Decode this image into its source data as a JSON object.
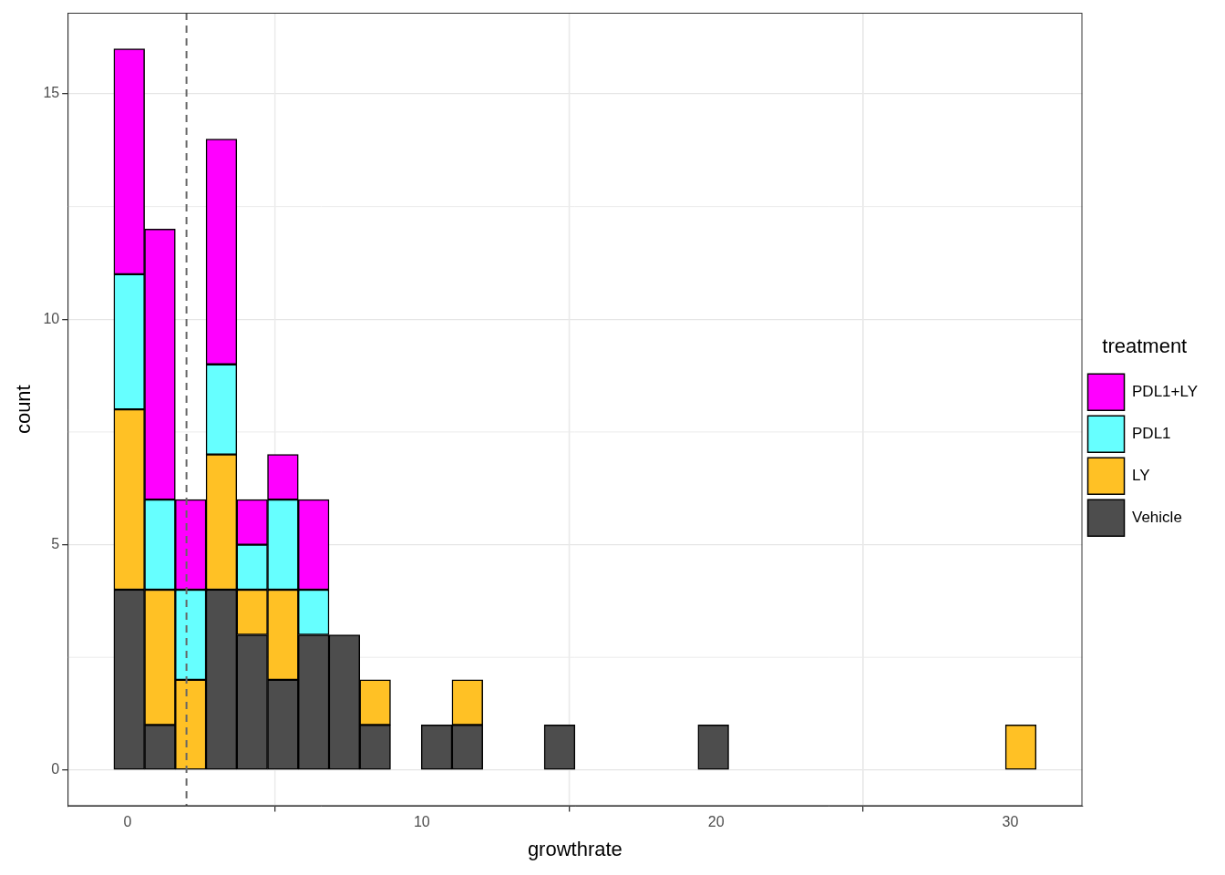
{
  "chart_data": {
    "type": "histogram",
    "x_label": "growthrate",
    "y_label": "count",
    "bins": [
      -0.47,
      0.575,
      1.62,
      2.665,
      3.71,
      4.755,
      5.8,
      6.845,
      7.89,
      8.935,
      9.98,
      11.025,
      12.07,
      13.115,
      14.16,
      15.205,
      16.25,
      17.295,
      18.34,
      19.385,
      20.43,
      21.475,
      22.52,
      23.565,
      24.61,
      25.655,
      26.7,
      27.745,
      28.79,
      29.835,
      30.88
    ],
    "series": [
      {
        "name": "PDL1+LY",
        "color": "#FF00FF",
        "values": [
          5,
          6,
          2,
          5,
          1,
          1,
          2,
          0,
          0,
          0,
          0,
          0,
          0,
          0,
          0,
          0,
          0,
          0,
          0,
          0,
          0,
          0,
          0,
          0,
          0,
          0,
          0,
          0,
          0,
          0
        ]
      },
      {
        "name": "PDL1",
        "color": "#66FFFF",
        "values": [
          3,
          2,
          2,
          2,
          1,
          2,
          1,
          0,
          0,
          0,
          0,
          0,
          0,
          0,
          0,
          0,
          0,
          0,
          0,
          0,
          0,
          0,
          0,
          0,
          0,
          0,
          0,
          0,
          0,
          0
        ]
      },
      {
        "name": "LY",
        "color": "#FFC125",
        "values": [
          4,
          3,
          2,
          3,
          1,
          2,
          0,
          0,
          1,
          0,
          0,
          1,
          0,
          0,
          0,
          0,
          0,
          0,
          0,
          0,
          0,
          0,
          0,
          0,
          0,
          0,
          0,
          0,
          0,
          1
        ]
      },
      {
        "name": "Vehicle",
        "color": "#4D4D4D",
        "values": [
          4,
          1,
          0,
          4,
          3,
          2,
          3,
          3,
          1,
          0,
          1,
          1,
          0,
          0,
          1,
          0,
          0,
          0,
          0,
          1,
          0,
          0,
          0,
          0,
          0,
          0,
          0,
          0,
          0,
          0
        ]
      }
    ],
    "stacked": true,
    "legend": "right",
    "legend_title": "treatment",
    "xlim": [
      -2.04,
      32.45
    ],
    "xticks": [
      0,
      10,
      20,
      30
    ],
    "ylim": [
      -0.8,
      16.8
    ],
    "yticks": [
      0,
      5,
      10,
      15
    ],
    "grid": true,
    "reference_line": {
      "x": 2,
      "line_style": "dashed"
    }
  }
}
